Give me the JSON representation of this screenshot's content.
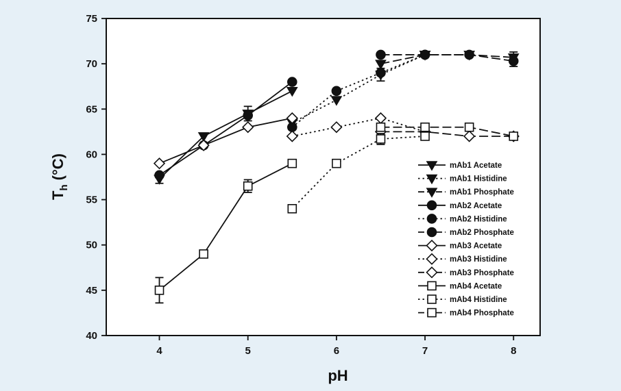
{
  "colors": {
    "background": "#e6f0f7",
    "plot_background": "#ffffff",
    "ink": "#111111"
  },
  "chart_data": {
    "type": "line",
    "xlabel": "pH",
    "ylabel": "T",
    "ylabel_subscript": "h",
    "ylabel_unit": "(°C)",
    "xlim": [
      3.4,
      8.3
    ],
    "ylim": [
      40,
      75
    ],
    "xticks": [
      4,
      5,
      6,
      7,
      8
    ],
    "yticks": [
      40,
      45,
      50,
      55,
      60,
      65,
      70,
      75
    ],
    "grid": false,
    "legend_position": "right",
    "series": [
      {
        "name": "mAb1 Acetate",
        "marker": "triangle-down",
        "fill": "filled",
        "line": "solid",
        "x": [
          4,
          4.5,
          5,
          5.5
        ],
        "y": [
          57.3,
          62,
          64.5,
          67
        ],
        "err": [
          0.5,
          0,
          0.8,
          0
        ]
      },
      {
        "name": "mAb1 Histidine",
        "marker": "triangle-down",
        "fill": "filled",
        "line": "dotted",
        "x": [
          5.5,
          6,
          6.5,
          7
        ],
        "y": [
          63.5,
          66,
          68.8,
          71
        ],
        "err": [
          0,
          0,
          0.7,
          0
        ]
      },
      {
        "name": "mAb1 Phosphate",
        "marker": "triangle-down",
        "fill": "filled",
        "line": "dashed",
        "x": [
          6.5,
          7,
          7.5,
          8
        ],
        "y": [
          70,
          71,
          71,
          70.7
        ],
        "err": [
          0,
          0,
          0,
          0.6
        ]
      },
      {
        "name": "mAb2 Acetate",
        "marker": "circle",
        "fill": "filled",
        "line": "solid",
        "x": [
          4,
          4.5,
          5,
          5.5
        ],
        "y": [
          57.7,
          61,
          64.3,
          68
        ],
        "err": [
          0,
          0,
          0,
          0
        ]
      },
      {
        "name": "mAb2 Histidine",
        "marker": "circle",
        "fill": "filled",
        "line": "dotted",
        "x": [
          5.5,
          6,
          6.5,
          7
        ],
        "y": [
          63,
          67,
          69,
          71
        ],
        "err": [
          0,
          0,
          0,
          0
        ]
      },
      {
        "name": "mAb2 Phosphate",
        "marker": "circle",
        "fill": "filled",
        "line": "dashed",
        "x": [
          6.5,
          7,
          7.5,
          8
        ],
        "y": [
          71,
          71,
          71,
          70.3
        ],
        "err": [
          0,
          0,
          0,
          0.6
        ]
      },
      {
        "name": "mAb3 Acetate",
        "marker": "diamond",
        "fill": "open",
        "line": "solid",
        "x": [
          4,
          4.5,
          5,
          5.5
        ],
        "y": [
          59,
          61,
          63,
          64
        ],
        "err": [
          0,
          0,
          0,
          0
        ]
      },
      {
        "name": "mAb3 Histidine",
        "marker": "diamond",
        "fill": "open",
        "line": "dotted",
        "x": [
          5.5,
          6,
          6.5,
          7
        ],
        "y": [
          62,
          63,
          64,
          62.5
        ],
        "err": [
          0,
          0,
          0,
          0
        ]
      },
      {
        "name": "mAb3 Phosphate",
        "marker": "diamond",
        "fill": "open",
        "line": "dashed",
        "x": [
          6.5,
          7,
          7.5,
          8
        ],
        "y": [
          62.5,
          62.5,
          62,
          62
        ],
        "err": [
          0,
          0,
          0,
          0
        ]
      },
      {
        "name": "mAb4 Acetate",
        "marker": "square",
        "fill": "open",
        "line": "solid",
        "x": [
          4,
          4.5,
          5,
          5.5
        ],
        "y": [
          45,
          49,
          56.5,
          59
        ],
        "err": [
          1.4,
          0,
          0.7,
          0
        ]
      },
      {
        "name": "mAb4 Histidine",
        "marker": "square",
        "fill": "open",
        "line": "dotted",
        "x": [
          5.5,
          6,
          6.5,
          7
        ],
        "y": [
          54,
          59,
          61.7,
          62
        ],
        "err": [
          0,
          0,
          0.6,
          0
        ]
      },
      {
        "name": "mAb4 Phosphate",
        "marker": "square",
        "fill": "open",
        "line": "dashed",
        "x": [
          6.5,
          7,
          7.5,
          8
        ],
        "y": [
          63,
          63,
          63,
          62
        ],
        "err": [
          0,
          0,
          0,
          0
        ]
      }
    ]
  }
}
